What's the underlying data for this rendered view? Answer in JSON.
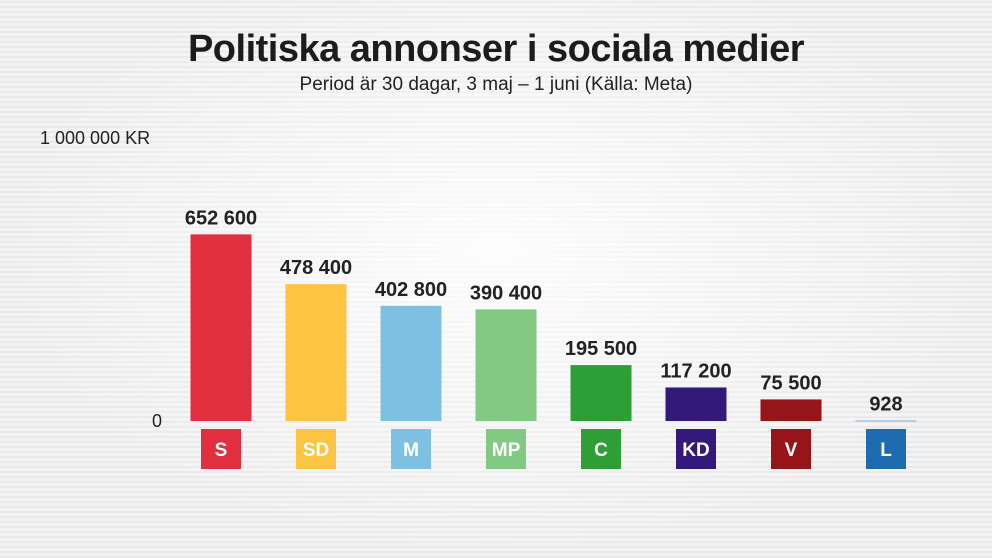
{
  "chart_data": {
    "type": "bar",
    "title": "Politiska annonser i sociala medier",
    "subtitle": "Period är 30 dagar, 3 maj – 1 juni (Källa: Meta)",
    "ylim": [
      0,
      1000000
    ],
    "ytick_labels": [
      "0",
      "1 000 000 KR"
    ],
    "categories": [
      "S",
      "SD",
      "M",
      "MP",
      "C",
      "KD",
      "V",
      "L"
    ],
    "values": [
      652600,
      478400,
      402800,
      390400,
      195500,
      117200,
      75500,
      928
    ],
    "value_labels": [
      "652 600",
      "478 400",
      "402 800",
      "390 400",
      "195 500",
      "117 200",
      "75 500",
      "928"
    ],
    "colors": [
      "#e03040",
      "#fdc342",
      "#7ec0e2",
      "#82ca84",
      "#2e9e36",
      "#33197a",
      "#951519",
      "#1e6bb2"
    ],
    "grid": false,
    "legend": "none"
  }
}
